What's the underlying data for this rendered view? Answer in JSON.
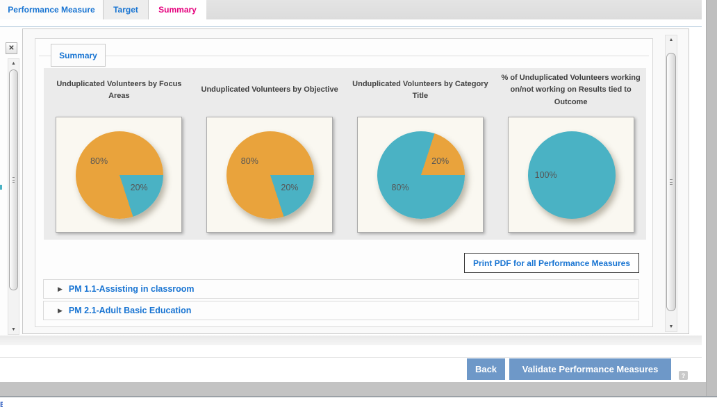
{
  "colors": {
    "accent_blue": "#1874D2",
    "active_tab_pink": "#E5007D",
    "pie_orange": "#E9A33C",
    "pie_teal": "#4AB2C4",
    "action_button_blue": "#6E98C8"
  },
  "tabs": {
    "items": [
      {
        "label": "Performance Measure"
      },
      {
        "label": "Target"
      },
      {
        "label": "Summary"
      }
    ],
    "active": "Summary"
  },
  "panel": {
    "section_tab_label": "Summary"
  },
  "chart_data": [
    {
      "type": "pie",
      "title": "Unduplicated Volunteers by Focus Areas",
      "legend": "none",
      "start_angle_deg": 90,
      "slices": [
        {
          "label": "20%",
          "value": 20,
          "color": "#4AB2C4",
          "label_pos": {
            "x": 66,
            "y": 61
          }
        },
        {
          "label": "80%",
          "value": 80,
          "color": "#E9A33C",
          "label_pos": {
            "x": 34,
            "y": 38
          }
        }
      ]
    },
    {
      "type": "pie",
      "title": "Unduplicated Volunteers by Objective",
      "legend": "none",
      "start_angle_deg": 90,
      "slices": [
        {
          "label": "20%",
          "value": 20,
          "color": "#4AB2C4",
          "label_pos": {
            "x": 66,
            "y": 61
          }
        },
        {
          "label": "80%",
          "value": 80,
          "color": "#E9A33C",
          "label_pos": {
            "x": 34,
            "y": 38
          }
        }
      ]
    },
    {
      "type": "pie",
      "title": "Unduplicated Volunteers by Category Title",
      "legend": "none",
      "start_angle_deg": 18,
      "slices": [
        {
          "label": "20%",
          "value": 20,
          "color": "#E9A33C",
          "label_pos": {
            "x": 66,
            "y": 38
          }
        },
        {
          "label": "80%",
          "value": 80,
          "color": "#4AB2C4",
          "label_pos": {
            "x": 34,
            "y": 61
          }
        }
      ]
    },
    {
      "type": "pie",
      "title": "% of Unduplicated Volunteers working on/not working on Results tied to Outcome",
      "legend": "none",
      "start_angle_deg": 0,
      "slices": [
        {
          "label": "100%",
          "value": 100,
          "color": "#4AB2C4",
          "label_pos": {
            "x": 30,
            "y": 50
          }
        }
      ]
    }
  ],
  "buttons": {
    "print_pdf": "Print PDF for all Performance Measures",
    "back": "Back",
    "validate": "Validate Performance Measures",
    "help": "?",
    "close": "✕"
  },
  "accordion": {
    "items": [
      {
        "label": "PM 1.1-Assisting in classroom"
      },
      {
        "label": "PM 2.1-Adult Basic Education"
      }
    ]
  },
  "icons": {
    "expand": "▶",
    "scroll_up": "▲",
    "scroll_down": "▼"
  },
  "misc": {
    "clipped_edge_text": "E"
  }
}
